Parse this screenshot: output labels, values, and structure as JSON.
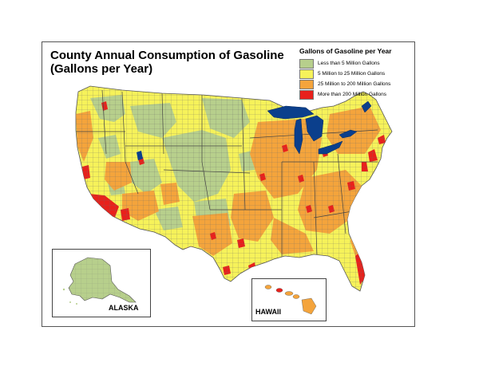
{
  "title": {
    "line1": "County Annual Consumption of Gasoline",
    "line2": "(Gallons per Year)"
  },
  "legend": {
    "title": "Gallons of Gasoline per Year",
    "items": [
      {
        "label": "Less than 5 Million Gallons",
        "color": "#b7cf8c"
      },
      {
        "label": "5 Million to 25 Million Gallons",
        "color": "#f6f25a"
      },
      {
        "label": "25 Million to 200 Million Gallons",
        "color": "#f4a43c"
      },
      {
        "label": "More than 200 Million Gallons",
        "color": "#e8211c"
      }
    ]
  },
  "insets": {
    "alaska": "ALASKA",
    "hawaii": "HAWAII"
  },
  "colors": {
    "water": "#0b3f8c",
    "border": "#555555"
  }
}
